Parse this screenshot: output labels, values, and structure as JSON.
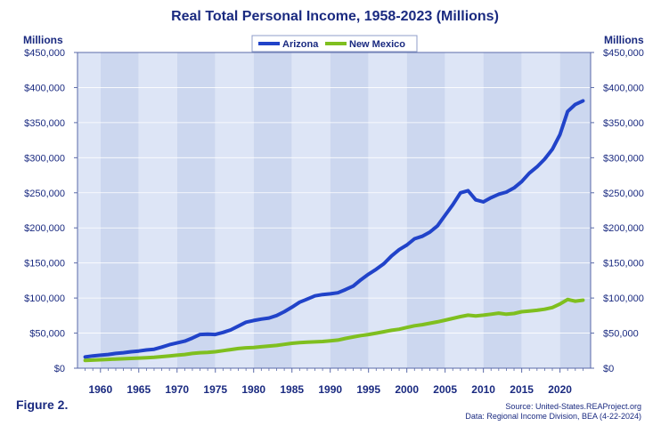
{
  "chart_data": {
    "type": "line",
    "title": "Real Total Personal Income, 1958-2023 (Millions)",
    "ylabel_left": "Millions",
    "ylabel_right": "Millions",
    "ylim": [
      0,
      450000
    ],
    "yticks": [
      0,
      50000,
      100000,
      150000,
      200000,
      250000,
      300000,
      350000,
      400000,
      450000
    ],
    "ytick_labels": [
      "$0",
      "$50,000",
      "$100,000",
      "$150,000",
      "$200,000",
      "$250,000",
      "$300,000",
      "$350,000",
      "$400,000",
      "$450,000"
    ],
    "xlim": [
      1957,
      2024
    ],
    "xticks": [
      1960,
      1965,
      1970,
      1975,
      1980,
      1985,
      1990,
      1995,
      2000,
      2005,
      2010,
      2015,
      2020
    ],
    "xtick_labels": [
      "1960",
      "1965",
      "1970",
      "1975",
      "1980",
      "1985",
      "1990",
      "1995",
      "2000",
      "2005",
      "2010",
      "2015",
      "2020"
    ],
    "grid": "alternating vertical bands",
    "legend_position": "top-center",
    "colors": {
      "arizona": "#2143c9",
      "new_mexico": "#7fbf1f",
      "band_dark": "#ccd7ef",
      "band_light": "#dde5f6",
      "text": "#1a2a80"
    },
    "x": [
      1958,
      1959,
      1960,
      1961,
      1962,
      1963,
      1964,
      1965,
      1966,
      1967,
      1968,
      1969,
      1970,
      1971,
      1972,
      1973,
      1974,
      1975,
      1976,
      1977,
      1978,
      1979,
      1980,
      1981,
      1982,
      1983,
      1984,
      1985,
      1986,
      1987,
      1988,
      1989,
      1990,
      1991,
      1992,
      1993,
      1994,
      1995,
      1996,
      1997,
      1998,
      1999,
      2000,
      2001,
      2002,
      2003,
      2004,
      2005,
      2006,
      2007,
      2008,
      2009,
      2010,
      2011,
      2012,
      2013,
      2014,
      2015,
      2016,
      2017,
      2018,
      2019,
      2020,
      2021,
      2022,
      2023
    ],
    "series": [
      {
        "name": "Arizona",
        "color": "#2143c9",
        "values": [
          16000,
          17500,
          18500,
          19500,
          21000,
          22000,
          23500,
          24500,
          26000,
          27000,
          30000,
          33500,
          36000,
          38500,
          43000,
          48000,
          48500,
          48000,
          51000,
          54500,
          60000,
          65500,
          68000,
          70000,
          71500,
          75000,
          80500,
          87000,
          94000,
          98500,
          103000,
          105000,
          106000,
          107500,
          112000,
          117000,
          126000,
          134000,
          141000,
          149000,
          160000,
          169000,
          175500,
          184500,
          188000,
          194000,
          203000,
          218000,
          233000,
          250000,
          253000,
          240000,
          237000,
          243000,
          248000,
          251000,
          257000,
          266000,
          278000,
          287000,
          298000,
          312000,
          333000,
          366000,
          376000,
          381000
        ]
      },
      {
        "name": "New Mexico",
        "color": "#7fbf1f",
        "values": [
          11000,
          11500,
          12000,
          12500,
          13000,
          13500,
          14000,
          14500,
          15000,
          15500,
          16500,
          17500,
          18500,
          19500,
          21000,
          22000,
          22500,
          23500,
          25000,
          26500,
          28000,
          29000,
          29500,
          30500,
          31500,
          32500,
          34000,
          35500,
          36500,
          37000,
          37500,
          38000,
          39000,
          40000,
          42500,
          44500,
          46500,
          48000,
          50000,
          52000,
          54000,
          55500,
          58000,
          60500,
          62000,
          64000,
          66000,
          68500,
          71000,
          73500,
          75500,
          74500,
          75500,
          77000,
          78500,
          77000,
          78000,
          80500,
          81500,
          82500,
          84000,
          86500,
          91500,
          98000,
          95500,
          97000
        ]
      }
    ]
  },
  "figure_label": "Figure 2.",
  "source_line1": "Source: United-States.REAProject.org",
  "source_line2": "Data: Regional Income Division, BEA (4-22-2024)"
}
